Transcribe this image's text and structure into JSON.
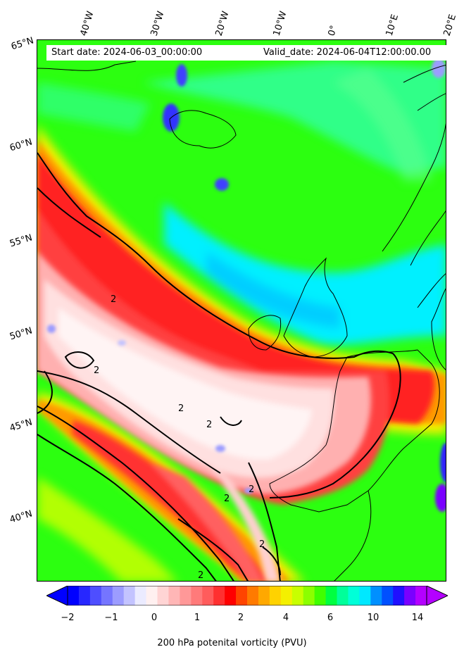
{
  "header": {
    "start_date": "Start date: 2024-06-03_00:00:00",
    "valid_date": "Valid_date: 2024-06-04T12:00:00.00"
  },
  "lon_labels": [
    "40°W",
    "30°W",
    "20°W",
    "10°W",
    "0°",
    "10°E",
    "20°E"
  ],
  "lat_labels": [
    "65°N",
    "60°N",
    "55°N",
    "50°N",
    "45°N",
    "40°N"
  ],
  "contour_labels": [
    "2",
    "2",
    "2",
    "2",
    "2",
    "2",
    "2",
    "2"
  ],
  "colorbar": {
    "label": "200 hPa potenital vorticity (PVU)",
    "ticks": [
      "−2",
      "−1",
      "0",
      "1",
      "2",
      "4",
      "6",
      "10",
      "14"
    ],
    "colors": [
      "#0000ff",
      "#2727ff",
      "#4e4eff",
      "#7575ff",
      "#9c9cff",
      "#c3c3ff",
      "#ebebff",
      "#fff0f0",
      "#ffd4d4",
      "#ffb6b6",
      "#ff9898",
      "#ff7a7a",
      "#ff5c5c",
      "#ff3030",
      "#ff0000",
      "#ff4400",
      "#ff7a00",
      "#ffa800",
      "#ffd200",
      "#f4f000",
      "#c8ff00",
      "#8cff00",
      "#40ff00",
      "#00ff40",
      "#00ff9a",
      "#00ffd8",
      "#00e8ff",
      "#0090ff",
      "#0050ff",
      "#2010ff",
      "#7a00ff",
      "#b400ff"
    ]
  }
}
